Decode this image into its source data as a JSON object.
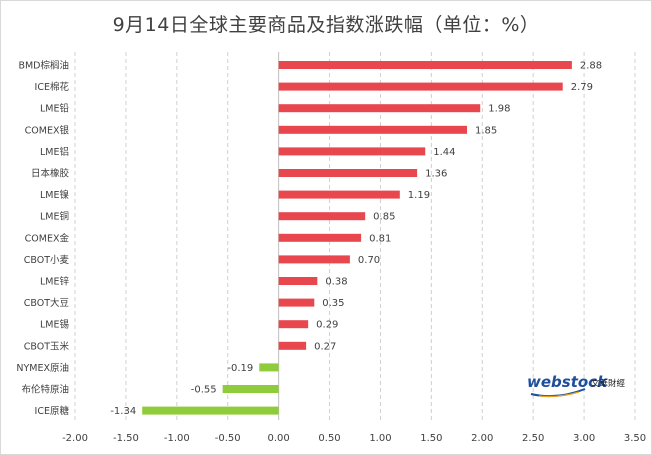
{
  "chart_data": {
    "type": "bar",
    "orientation": "horizontal",
    "title": "9月14日全球主要商品及指数涨跌幅（单位：%）",
    "categories": [
      "BMD棕榈油",
      "ICE棉花",
      "LME铅",
      "COMEX银",
      "LME铝",
      "日本橡胶",
      "LME镍",
      "LME铜",
      "COMEX金",
      "CBOT小麦",
      "LME锌",
      "CBOT大豆",
      "LME锡",
      "CBOT玉米",
      "NYMEX原油",
      "布伦特原油",
      "ICE原糖"
    ],
    "values": [
      2.88,
      2.79,
      1.98,
      1.85,
      1.44,
      1.36,
      1.19,
      0.85,
      0.81,
      0.7,
      0.38,
      0.35,
      0.29,
      0.27,
      -0.19,
      -0.55,
      -1.34
    ],
    "value_labels": [
      "2.88",
      "2.79",
      "1.98",
      "1.85",
      "1.44",
      "1.36",
      "1.19",
      "0.85",
      "0.81",
      "0.70",
      "0.38",
      "0.35",
      "0.29",
      "0.27",
      "-0.19",
      "-0.55",
      "-1.34"
    ],
    "xlim": [
      -2.0,
      3.5
    ],
    "xticks": [
      "-2.00",
      "-1.50",
      "-1.00",
      "-0.50",
      "0.00",
      "0.50",
      "1.00",
      "1.50",
      "2.00",
      "2.50",
      "3.00",
      "3.50"
    ],
    "grid": "vertical dashed",
    "colors": {
      "positive": "#e8474e",
      "negative": "#8fcc3c",
      "grid": "#d0d0d0",
      "text": "#404040"
    }
  },
  "logo": {
    "brand": "webstock",
    "tagline": "文華財經"
  }
}
